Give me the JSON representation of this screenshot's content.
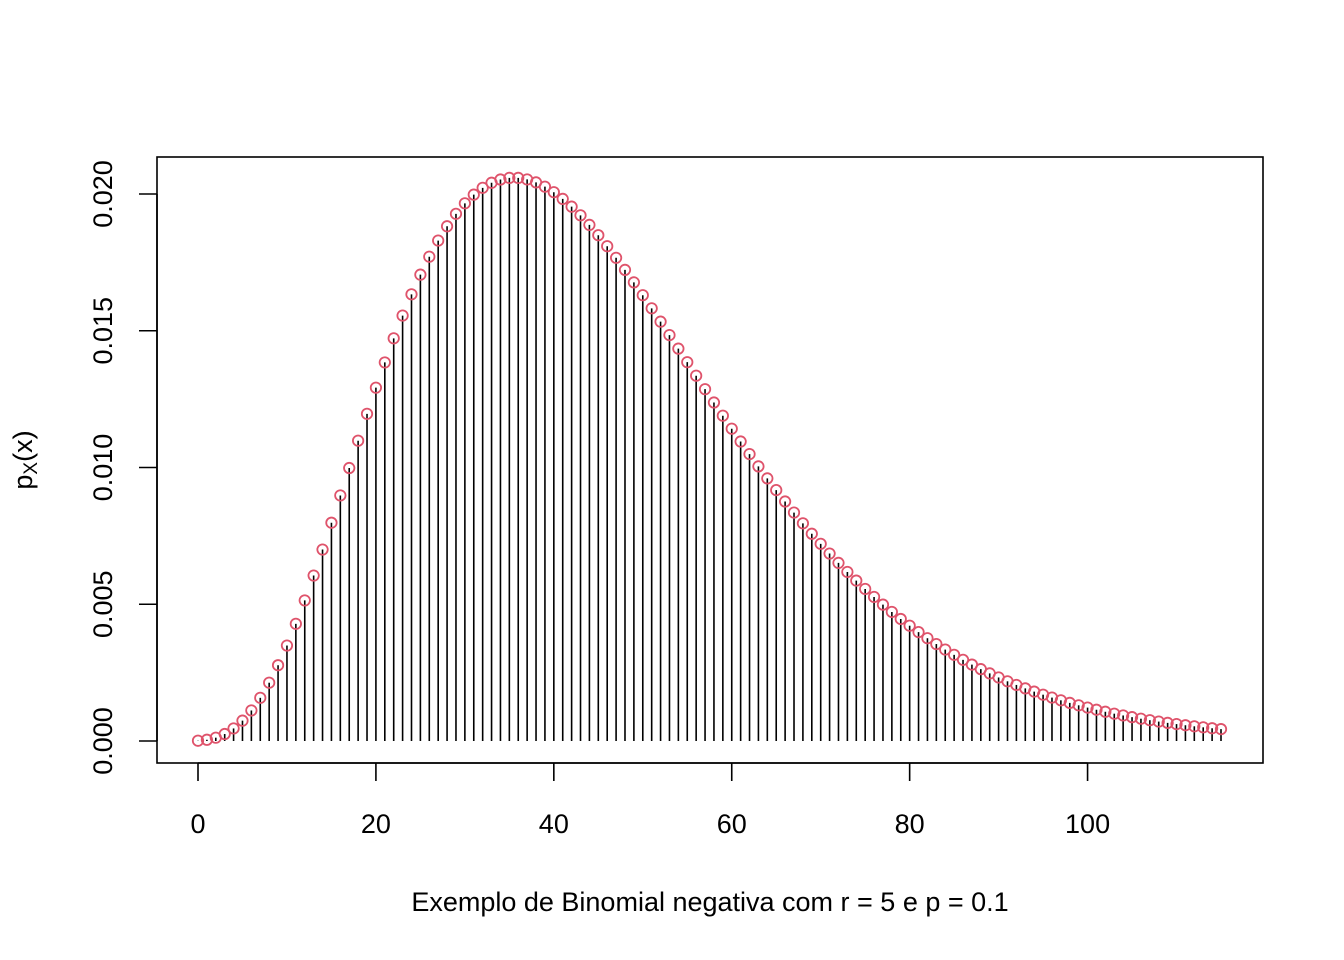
{
  "chart_data": {
    "type": "scatter",
    "distribution": "negative binomial",
    "r": 5,
    "p": 0.1,
    "x_range": [
      0,
      115
    ],
    "xlabel": "Exemplo de Binomial negativa com  r = 5 e p = 0.1",
    "ylabel": {
      "main": "p",
      "subscript": "X",
      "rest": "(x)"
    },
    "xlim": [
      0,
      115
    ],
    "ylim": [
      0,
      0.0206
    ],
    "x_ticks": [
      "0",
      "20",
      "40",
      "60",
      "80",
      "100"
    ],
    "y_ticks": [
      "0.000",
      "0.005",
      "0.010",
      "0.015",
      "0.020"
    ],
    "grid": false,
    "legend": "none",
    "point_color": "#DF536B",
    "stem_color": "#000000"
  }
}
